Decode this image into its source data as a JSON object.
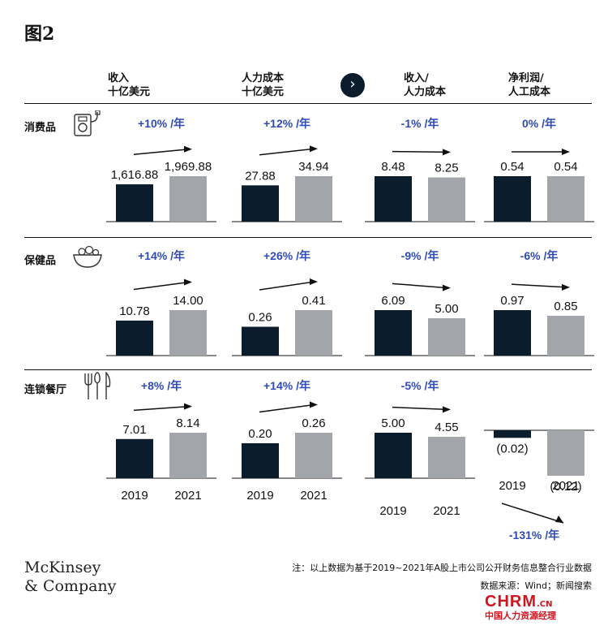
{
  "title": "图2",
  "columns": [
    {
      "line1": "收入",
      "line2": "十亿美元"
    },
    {
      "line1": "人力成本",
      "line2": "十亿美元"
    },
    {
      "line1": "收入/",
      "line2": "人力成本"
    },
    {
      "line1": "净利润/",
      "line2": "人工成本"
    }
  ],
  "rows": [
    {
      "label": "消费品",
      "icon": "music-player-icon"
    },
    {
      "label": "保健品",
      "icon": "salad-bowl-icon"
    },
    {
      "label": "连锁餐厅",
      "icon": "cutlery-icon"
    }
  ],
  "nav_arrow": "›",
  "colors": {
    "dark": "#0b1c2c",
    "gray": "#a2a6ab",
    "accent": "#2f4bb8"
  },
  "chart_data": [
    {
      "type": "bar",
      "row": "消费品",
      "metric": "收入",
      "categories": [
        "2019",
        "2021"
      ],
      "values": [
        1616.88,
        1969.88
      ],
      "labels": [
        "1,616.88",
        "1,969.88"
      ],
      "change": "+10% /年"
    },
    {
      "type": "bar",
      "row": "消费品",
      "metric": "人力成本",
      "categories": [
        "2019",
        "2021"
      ],
      "values": [
        27.88,
        34.94
      ],
      "labels": [
        "27.88",
        "34.94"
      ],
      "change": "+12% /年"
    },
    {
      "type": "bar",
      "row": "消费品",
      "metric": "收入/人力成本",
      "categories": [
        "2019",
        "2021"
      ],
      "values": [
        8.48,
        8.25
      ],
      "labels": [
        "8.48",
        "8.25"
      ],
      "change": "-1% /年"
    },
    {
      "type": "bar",
      "row": "消费品",
      "metric": "净利润/人工成本",
      "categories": [
        "2019",
        "2021"
      ],
      "values": [
        0.54,
        0.54
      ],
      "labels": [
        "0.54",
        "0.54"
      ],
      "change": "0% /年"
    },
    {
      "type": "bar",
      "row": "保健品",
      "metric": "收入",
      "categories": [
        "2019",
        "2021"
      ],
      "values": [
        10.78,
        14.0
      ],
      "labels": [
        "10.78",
        "14.00"
      ],
      "change": "+14% /年"
    },
    {
      "type": "bar",
      "row": "保健品",
      "metric": "人力成本",
      "categories": [
        "2019",
        "2021"
      ],
      "values": [
        0.26,
        0.41
      ],
      "labels": [
        "0.26",
        "0.41"
      ],
      "change": "+26% /年"
    },
    {
      "type": "bar",
      "row": "保健品",
      "metric": "收入/人力成本",
      "categories": [
        "2019",
        "2021"
      ],
      "values": [
        6.09,
        5.0
      ],
      "labels": [
        "6.09",
        "5.00"
      ],
      "change": "-9% /年"
    },
    {
      "type": "bar",
      "row": "保健品",
      "metric": "净利润/人工成本",
      "categories": [
        "2019",
        "2021"
      ],
      "values": [
        0.97,
        0.85
      ],
      "labels": [
        "0.97",
        "0.85"
      ],
      "change": "-6% /年"
    },
    {
      "type": "bar",
      "row": "连锁餐厅",
      "metric": "收入",
      "categories": [
        "2019",
        "2021"
      ],
      "values": [
        7.01,
        8.14
      ],
      "labels": [
        "7.01",
        "8.14"
      ],
      "change": "+8% /年"
    },
    {
      "type": "bar",
      "row": "连锁餐厅",
      "metric": "人力成本",
      "categories": [
        "2019",
        "2021"
      ],
      "values": [
        0.2,
        0.26
      ],
      "labels": [
        "0.20",
        "0.26"
      ],
      "change": "+14% /年"
    },
    {
      "type": "bar",
      "row": "连锁餐厅",
      "metric": "收入/人力成本",
      "categories": [
        "2019",
        "2021"
      ],
      "values": [
        5.0,
        4.55
      ],
      "labels": [
        "5.00",
        "4.55"
      ],
      "change": "-5% /年"
    },
    {
      "type": "bar",
      "row": "连锁餐厅",
      "metric": "净利润/人工成本",
      "categories": [
        "2019",
        "2021"
      ],
      "values": [
        -0.02,
        -0.12
      ],
      "labels": [
        "(0.02)",
        "(0.12)"
      ],
      "change": "-131% /年"
    }
  ],
  "footer": {
    "logo_line1": "McKinsey",
    "logo_line2": "& Company",
    "note": "注：以上数据为基于2019~2021年A股上市公司公开财务信息整合行业数据",
    "source": "数据来源：Wind；新闻搜索",
    "watermark": "CHRM",
    "watermark_suffix": ".CN",
    "watermark_sub": "中国人力资源经理"
  }
}
